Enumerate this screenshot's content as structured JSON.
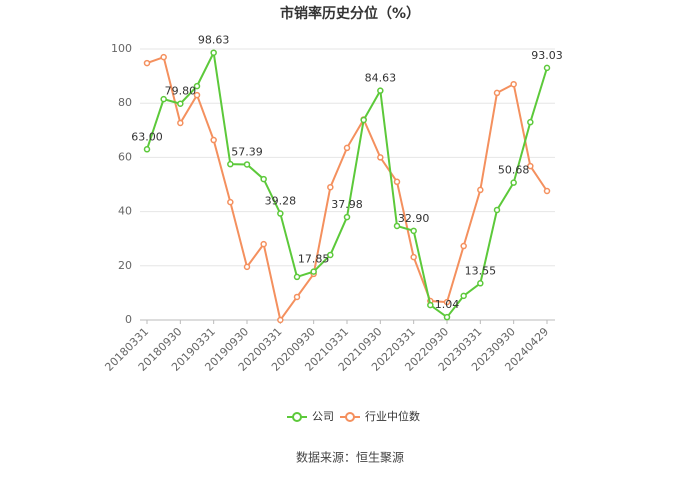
{
  "chart_data": {
    "type": "line",
    "title": "市销率历史分位（%）",
    "categories": [
      "20180331",
      null,
      "20180930",
      null,
      "20190331",
      null,
      "20190930",
      null,
      "20200331",
      null,
      "20200930",
      null,
      "20210331",
      null,
      "20210930",
      null,
      "20220331",
      null,
      "20220930",
      null,
      "20230331",
      null,
      "20230930",
      null,
      "20240429"
    ],
    "series": [
      {
        "name": "公司",
        "color": "#5cc93a",
        "values": [
          63.0,
          81.5,
          79.8,
          86.3,
          98.63,
          57.5,
          57.39,
          52,
          39.28,
          15.9,
          17.85,
          24,
          37.98,
          73.8,
          84.63,
          34.7,
          32.9,
          5.5,
          1.04,
          8.9,
          13.55,
          40.6,
          50.68,
          73,
          93.03
        ],
        "value_labels": [
          "63.00",
          null,
          "79.80",
          null,
          "98.63",
          null,
          "57.39",
          null,
          "39.28",
          null,
          "17.85",
          null,
          "37.98",
          null,
          "84.63",
          null,
          "32.90",
          null,
          "1.04",
          null,
          "13.55",
          null,
          "50.68",
          null,
          "93.03"
        ]
      },
      {
        "name": "行业中位数",
        "color": "#f4905e",
        "values": [
          94.8,
          97,
          72.7,
          83,
          66.4,
          43.5,
          19.6,
          28,
          0,
          8.5,
          17,
          49,
          63.5,
          74,
          60,
          51,
          23.2,
          7,
          6.6,
          27.3,
          48,
          83.8,
          87,
          56.8,
          47.6
        ]
      }
    ],
    "ylim": [
      0,
      100
    ],
    "yticks": [
      0,
      20,
      40,
      60,
      80,
      100
    ],
    "grid": true,
    "source": "数据来源：恒生聚源"
  }
}
